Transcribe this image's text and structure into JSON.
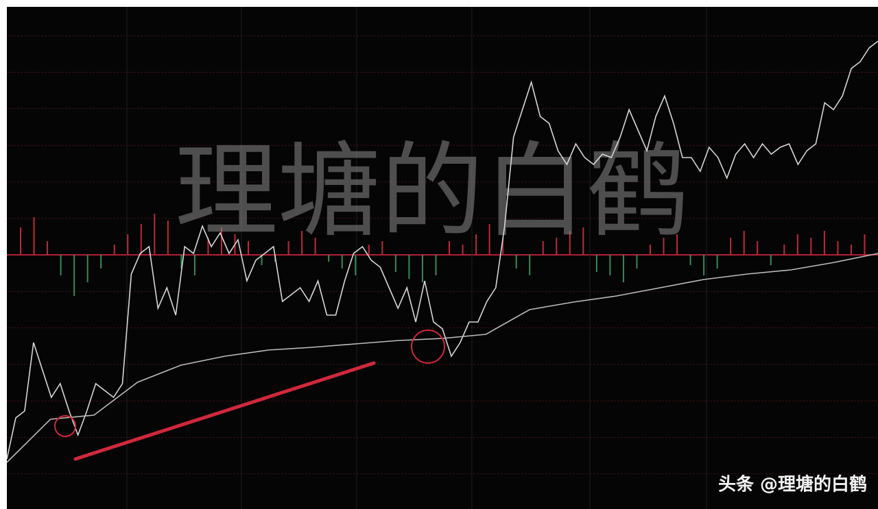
{
  "chart_data": {
    "type": "line",
    "watermark": "理塘的白鹤",
    "footer": "头条 @理塘的白鹤",
    "ylim": [
      0,
      720
    ],
    "series": [
      {
        "color": "#d8d8d8",
        "values": [
          60,
          120,
          130,
          230,
          190,
          150,
          170,
          130,
          95,
          130,
          170,
          160,
          150,
          170,
          330,
          360,
          370,
          280,
          310,
          270,
          370,
          360,
          400,
          370,
          390,
          360,
          380,
          320,
          350,
          360,
          370,
          290,
          300,
          310,
          290,
          320,
          270,
          270,
          320,
          360,
          370,
          350,
          340,
          310,
          280,
          310,
          260,
          320,
          260,
          250,
          210,
          230,
          260,
          260,
          290,
          310,
          400,
          530,
          570,
          610,
          560,
          550,
          510,
          490,
          520,
          500,
          490,
          505,
          500,
          530,
          570,
          540,
          510,
          560,
          590,
          550,
          500,
          500,
          480,
          515,
          500,
          470,
          505,
          520,
          500,
          520,
          505,
          515,
          520,
          490,
          510,
          520,
          580,
          570,
          590,
          630,
          640,
          660,
          670
        ]
      },
      {
        "color": "#bdbdbd",
        "values": [
          55,
          118,
          124,
          172,
          197,
          210,
          219,
          223,
          228,
          233,
          236,
          242,
          278,
          289,
          298,
          310,
          322,
          330,
          336,
          347,
          360
        ]
      }
    ],
    "volume": {
      "ylim": [
        -60,
        60
      ],
      "up_color": "#c0283a",
      "down_color": "#3a8a5a",
      "values": [
        40,
        55,
        20,
        -30,
        -60,
        -40,
        -20,
        15,
        30,
        45,
        60,
        50,
        -20,
        -30,
        25,
        40,
        30,
        20,
        -15,
        -10,
        20,
        35,
        25,
        -10,
        -20,
        -30,
        15,
        20,
        -25,
        -35,
        -40,
        -30,
        20,
        15,
        30,
        45,
        25,
        -20,
        -30,
        20,
        25,
        35,
        40,
        -25,
        -30,
        -40,
        -20,
        15,
        25,
        30,
        -15,
        -30,
        -20,
        25,
        35,
        20,
        -15,
        15,
        30,
        25,
        35,
        20,
        15,
        30
      ]
    }
  }
}
